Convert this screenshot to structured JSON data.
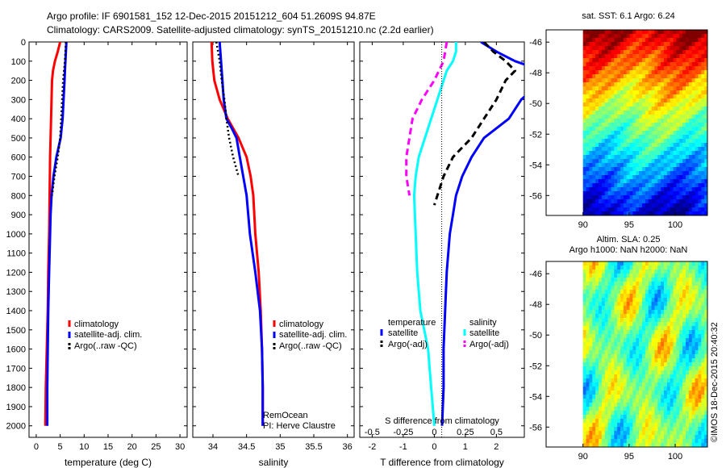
{
  "header": {
    "line1": "Argo profile: IF 6901581_152 12-Dec-2015 20151212_604 51.2609S 94.87E",
    "line2": "Climatology: CARS2009. Satellite-adjusted climatology: synTS_20151210.nc (2.2d earlier)"
  },
  "colors": {
    "climatology": "#ff0000",
    "satellite": "#0000ff",
    "argo": "#000000",
    "sal_satellite": "#00ffff",
    "sal_argo": "#ff00ff"
  },
  "depth_axis": {
    "ylim": [
      0,
      2060
    ],
    "ticks": [
      "0",
      "100",
      "200",
      "300",
      "400",
      "500",
      "600",
      "700",
      "800",
      "900",
      "1000",
      "1100",
      "1200",
      "1300",
      "1400",
      "1500",
      "1600",
      "1700",
      "1800",
      "1900",
      "2000"
    ]
  },
  "chart_data": [
    {
      "type": "line",
      "name": "temperature",
      "xlabel": "temperature (deg C)",
      "xlim": [
        -1.5,
        31.5
      ],
      "xticks": [
        "0",
        "5",
        "10",
        "15",
        "20",
        "25",
        "30"
      ],
      "legend": [
        "climatology",
        "satellite-adj. clim.",
        "Argo(..raw -QC)"
      ],
      "series": [
        {
          "name": "climatology",
          "key": "climatology",
          "dash": false,
          "points": [
            [
              5.0,
              0
            ],
            [
              4.5,
              50
            ],
            [
              3.9,
              100
            ],
            [
              3.5,
              150
            ],
            [
              3.3,
              200
            ],
            [
              3.2,
              300
            ],
            [
              3.1,
              400
            ],
            [
              3.0,
              500
            ],
            [
              2.9,
              600
            ],
            [
              2.8,
              800
            ],
            [
              2.7,
              1000
            ],
            [
              2.5,
              1200
            ],
            [
              2.4,
              1400
            ],
            [
              2.2,
              1600
            ],
            [
              2.0,
              1800
            ],
            [
              1.9,
              2000
            ]
          ]
        },
        {
          "name": "satellite-adj. clim.",
          "key": "satellite",
          "dash": false,
          "points": [
            [
              6.3,
              0
            ],
            [
              6.2,
              50
            ],
            [
              6.1,
              100
            ],
            [
              6.0,
              150
            ],
            [
              5.9,
              200
            ],
            [
              5.7,
              300
            ],
            [
              5.5,
              400
            ],
            [
              5.1,
              500
            ],
            [
              4.2,
              600
            ],
            [
              3.6,
              700
            ],
            [
              3.2,
              800
            ],
            [
              3.0,
              900
            ],
            [
              2.9,
              1000
            ],
            [
              2.7,
              1200
            ],
            [
              2.5,
              1400
            ],
            [
              2.4,
              1600
            ],
            [
              2.3,
              1800
            ],
            [
              2.3,
              2000
            ]
          ]
        },
        {
          "name": "Argo(..raw -QC)",
          "key": "argo",
          "dash": true,
          "points": [
            [
              6.2,
              0
            ],
            [
              6.0,
              100
            ],
            [
              5.6,
              200
            ],
            [
              5.4,
              300
            ],
            [
              5.2,
              400
            ],
            [
              5.0,
              500
            ],
            [
              4.5,
              600
            ],
            [
              3.8,
              700
            ],
            [
              3.3,
              800
            ]
          ]
        }
      ]
    },
    {
      "type": "line",
      "name": "salinity",
      "xlabel": "salinity",
      "xlim": [
        33.7,
        36.1
      ],
      "xticks": [
        "34",
        "34.5",
        "35",
        "35.5",
        "36"
      ],
      "legend": [
        "climatology",
        "satellite-adj. clim.",
        "Argo(..raw -QC)"
      ],
      "annotation": [
        "RemOcean",
        "PI: Herve Claustre"
      ],
      "series": [
        {
          "name": "climatology",
          "key": "climatology",
          "dash": false,
          "points": [
            [
              33.98,
              0
            ],
            [
              33.99,
              100
            ],
            [
              34.02,
              200
            ],
            [
              34.1,
              300
            ],
            [
              34.22,
              400
            ],
            [
              34.38,
              500
            ],
            [
              34.5,
              600
            ],
            [
              34.56,
              700
            ],
            [
              34.6,
              800
            ],
            [
              34.63,
              1000
            ],
            [
              34.68,
              1200
            ],
            [
              34.71,
              1400
            ],
            [
              34.73,
              1600
            ],
            [
              34.74,
              1800
            ],
            [
              34.74,
              2000
            ]
          ]
        },
        {
          "name": "satellite-adj. clim.",
          "key": "satellite",
          "dash": false,
          "points": [
            [
              34.1,
              0
            ],
            [
              34.12,
              100
            ],
            [
              34.14,
              200
            ],
            [
              34.16,
              300
            ],
            [
              34.2,
              400
            ],
            [
              34.28,
              450
            ],
            [
              34.35,
              500
            ],
            [
              34.4,
              600
            ],
            [
              34.45,
              700
            ],
            [
              34.5,
              800
            ],
            [
              34.55,
              1000
            ],
            [
              34.63,
              1200
            ],
            [
              34.7,
              1400
            ],
            [
              34.73,
              1600
            ],
            [
              34.74,
              1800
            ],
            [
              34.74,
              2000
            ]
          ]
        },
        {
          "name": "Argo(..raw -QC)",
          "key": "argo",
          "dash": true,
          "points": [
            [
              34.05,
              0
            ],
            [
              34.1,
              100
            ],
            [
              34.13,
              200
            ],
            [
              34.17,
              300
            ],
            [
              34.2,
              400
            ],
            [
              34.24,
              500
            ],
            [
              34.3,
              600
            ],
            [
              34.38,
              700
            ]
          ]
        }
      ]
    },
    {
      "type": "line",
      "name": "difference",
      "xlabel": "T difference from climatology",
      "xlim": [
        -2.4,
        2.9
      ],
      "xticks": [
        "-2",
        "-1",
        "0",
        "1",
        "2"
      ],
      "top_xlabel": "S difference from climatology",
      "top_xticks": [
        "-0.5",
        "-0.25",
        "0",
        "0.25",
        "0.5"
      ],
      "legend_headers": [
        "temperature",
        "salinity"
      ],
      "legend": [
        "satellite",
        "Argo(-adj)",
        "satellite",
        "Argo(-adj)"
      ],
      "series": [
        {
          "name": "satellite",
          "key": "satellite",
          "dash": false,
          "points": [
            [
              1.5,
              0
            ],
            [
              2.0,
              50
            ],
            [
              2.6,
              100
            ],
            [
              3.5,
              150
            ],
            [
              3.5,
              200
            ],
            [
              2.8,
              300
            ],
            [
              2.4,
              400
            ],
            [
              1.6,
              500
            ],
            [
              1.2,
              600
            ],
            [
              0.9,
              700
            ],
            [
              0.7,
              800
            ],
            [
              0.6,
              900
            ],
            [
              0.5,
              1000
            ],
            [
              0.4,
              1200
            ],
            [
              0.35,
              1400
            ],
            [
              0.3,
              1600
            ],
            [
              0.3,
              1800
            ],
            [
              0.25,
              2000
            ]
          ]
        },
        {
          "name": "Argo(-adj)",
          "key": "argo",
          "dash": true,
          "points": [
            [
              1.6,
              0
            ],
            [
              1.9,
              50
            ],
            [
              2.3,
              100
            ],
            [
              2.6,
              150
            ],
            [
              2.3,
              200
            ],
            [
              2.0,
              300
            ],
            [
              1.6,
              400
            ],
            [
              1.2,
              500
            ],
            [
              0.6,
              600
            ],
            [
              0.3,
              700
            ],
            [
              0.1,
              800
            ],
            [
              0.0,
              850
            ]
          ]
        },
        {
          "name": "satellite",
          "key": "sal_satellite",
          "dash": false,
          "points": [
            [
              0.7,
              0
            ],
            [
              0.7,
              50
            ],
            [
              0.6,
              100
            ],
            [
              0.4,
              150
            ],
            [
              0.3,
              200
            ],
            [
              0.1,
              300
            ],
            [
              -0.1,
              400
            ],
            [
              -0.3,
              500
            ],
            [
              -0.5,
              600
            ],
            [
              -0.6,
              700
            ],
            [
              -0.65,
              800
            ],
            [
              -0.6,
              1000
            ],
            [
              -0.55,
              1200
            ],
            [
              -0.45,
              1400
            ],
            [
              -0.2,
              1600
            ],
            [
              -0.1,
              1800
            ],
            [
              0.0,
              2000
            ]
          ]
        },
        {
          "name": "Argo(-adj)",
          "key": "sal_argo",
          "dash": true,
          "points": [
            [
              0.4,
              0
            ],
            [
              0.3,
              100
            ],
            [
              0.0,
              200
            ],
            [
              -0.4,
              300
            ],
            [
              -0.7,
              400
            ],
            [
              -0.8,
              500
            ],
            [
              -0.9,
              600
            ],
            [
              -0.9,
              700
            ],
            [
              -0.8,
              800
            ]
          ]
        }
      ]
    },
    {
      "type": "heatmap",
      "name": "sat-sst",
      "title": "sat. SST: 6.1  Argo: 6.24",
      "xlim": [
        86,
        103.5
      ],
      "ylim": [
        -57.3,
        -45.2
      ],
      "xticks": [
        "90",
        "95",
        "100"
      ],
      "yticks": [
        "-46",
        "-48",
        "-50",
        "-52",
        "-54",
        "-56"
      ]
    },
    {
      "type": "heatmap",
      "name": "altim-sla",
      "title_lines": [
        "Altim. SLA: 0.25",
        "Argo h1000: NaN h2000: NaN"
      ],
      "xlim": [
        86,
        103.5
      ],
      "ylim": [
        -57.3,
        -45.2
      ],
      "xticks": [
        "90",
        "95",
        "100"
      ],
      "yticks": [
        "-46",
        "-48",
        "-50",
        "-52",
        "-54",
        "-56"
      ]
    }
  ],
  "watermark": "©IMOS 18-Dec-2015 20:40:32"
}
